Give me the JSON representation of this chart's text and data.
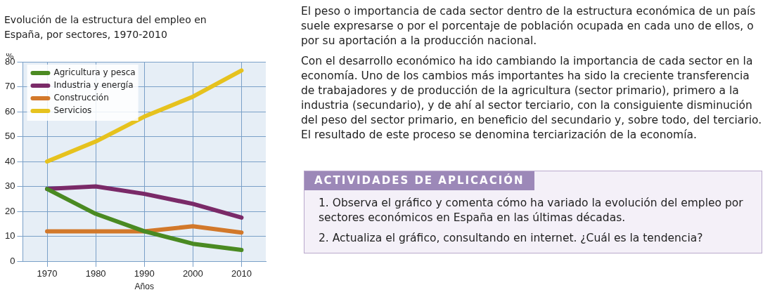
{
  "chart_data": {
    "type": "line",
    "title": "Evolución de la estructura del empleo en España, por sectores, 1970-2010",
    "xlabel": "Años",
    "ylabel": "%",
    "categories": [
      "1970",
      "1980",
      "1990",
      "2000",
      "2010"
    ],
    "series": [
      {
        "name": "Agricultura y pesca",
        "color": "#4a8a22",
        "values": [
          29,
          19,
          12,
          7,
          4.5
        ]
      },
      {
        "name": "Industria y energía",
        "color": "#7a2a68",
        "values": [
          29,
          30,
          27,
          23,
          17.5
        ]
      },
      {
        "name": "Construcción",
        "color": "#d2782a",
        "values": [
          12,
          12,
          12,
          14,
          11.5
        ]
      },
      {
        "name": "Servicios",
        "color": "#e6c21e",
        "values": [
          40,
          48,
          58,
          66,
          76.5
        ]
      }
    ],
    "ylim": [
      0,
      80
    ],
    "yticks": [
      0,
      10,
      20,
      30,
      40,
      50,
      60,
      70,
      80
    ],
    "grid": true,
    "legend": "top left",
    "marker": "none",
    "line_style": "solid",
    "annotations": [
      "El peso o importancia de cada sector dentro de la estructura económica de un país suele expresarse o por el porcentaje de población ocupada en cada uno de ellos, o por su aportación a la producción nacional.",
      "Con el desarrollo económico ha ido cambiando la importancia de cada sector en la economía. Uno de los cambios más importantes ha sido la creciente transferencia de trabajadores y de producción de la agricultura (sector primario), primero a la industria (secundario), y de ahí al sector terciario, con la consiguiente disminución del peso del sector primario, en beneficio del secundario y, sobre todo, del terciario. El resultado de este proceso se denomina terciarización de la economía.",
      "ACTIVIDADES DE APLICACIÓN",
      "1. Observa el gráfico y comenta cómo ha variado la evolución del empleo por sectores económicos en España en las últimas décadas.",
      "2. Actualiza el gráfico, consultando en internet. ¿Cuál es la tendencia?"
    ]
  }
}
